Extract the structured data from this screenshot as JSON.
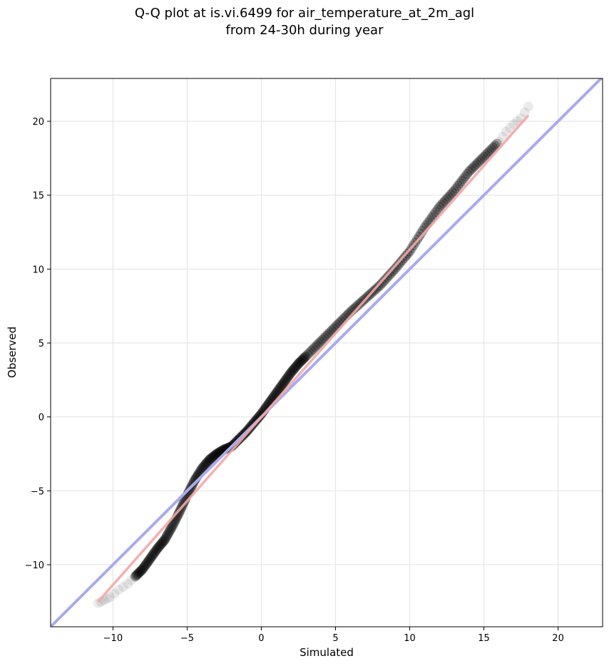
{
  "chart_data": {
    "type": "scatter",
    "title_line1": "Q-Q plot at is.vi.6499 for air_temperature_at_2m_agl",
    "title_line2": "from 24-30h during year",
    "xlabel": "Simulated",
    "ylabel": "Observed",
    "xlim": [
      -14.2,
      23
    ],
    "ylim": [
      -14.2,
      22.9
    ],
    "xticks": [
      -10,
      -5,
      0,
      5,
      10,
      15,
      20
    ],
    "yticks": [
      -10,
      -5,
      0,
      5,
      10,
      15,
      20
    ],
    "xtick_labels": [
      "−10",
      "−5",
      "0",
      "5",
      "10",
      "15",
      "20"
    ],
    "ytick_labels": [
      "−10",
      "−5",
      "0",
      "5",
      "10",
      "15",
      "20"
    ],
    "grid": true,
    "quantiles": {
      "x": [
        -11.0,
        -10.6,
        -10.2,
        -9.6,
        -9.0,
        -8.5,
        -8.0,
        -7.5,
        -7.0,
        -6.5,
        -6.0,
        -5.5,
        -5.0,
        -4.5,
        -4.0,
        -3.5,
        -3.0,
        -2.5,
        -2.0,
        -1.5,
        -1.0,
        -0.5,
        0.0,
        0.5,
        1.0,
        1.5,
        2.0,
        2.5,
        3.0,
        4.0,
        5.0,
        6.0,
        7.0,
        8.0,
        9.0,
        10.0,
        11.0,
        12.0,
        13.0,
        14.0,
        15.0,
        16.0,
        16.5,
        17.0,
        17.5,
        18.0
      ],
      "y": [
        -12.6,
        -12.4,
        -12.2,
        -11.7,
        -11.3,
        -10.8,
        -10.3,
        -9.6,
        -8.9,
        -8.3,
        -7.4,
        -6.4,
        -5.3,
        -4.3,
        -3.5,
        -2.9,
        -2.5,
        -2.2,
        -2.0,
        -1.5,
        -1.0,
        -0.4,
        0.2,
        0.9,
        1.6,
        2.3,
        3.0,
        3.6,
        4.1,
        5.1,
        6.1,
        7.1,
        8.0,
        8.9,
        10.0,
        11.2,
        12.8,
        14.2,
        15.3,
        16.6,
        17.6,
        18.6,
        19.3,
        19.8,
        20.2,
        21.0
      ]
    },
    "reference_line": {
      "color": "#aaaaee",
      "slope": 1,
      "intercept": 0
    },
    "fit_line": {
      "color": "#f4a6a6",
      "x": [
        -11.0,
        18.0
      ],
      "y": [
        -12.5,
        20.4
      ]
    },
    "point_color": "#000000"
  }
}
